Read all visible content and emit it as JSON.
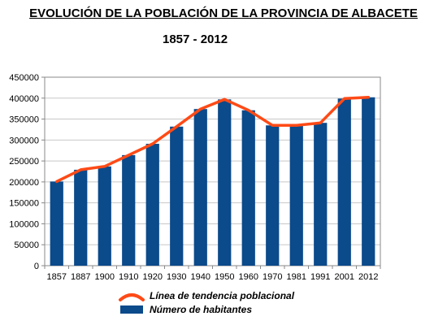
{
  "title": "EVOLUCIÓN DE LA POBLACIÓN DE LA PROVINCIA DE ALBACETE",
  "subtitle": "1857 - 2012",
  "colors": {
    "bar": "#0b4a8b",
    "trend": "#ff4a16",
    "grid": "#c8c8c8"
  },
  "chart_data": {
    "type": "bar",
    "categories": [
      "1857",
      "1887",
      "1900",
      "1910",
      "1920",
      "1930",
      "1940",
      "1950",
      "1960",
      "1970",
      "1981",
      "1991",
      "2001",
      "2012"
    ],
    "series": [
      {
        "name": "Número de habitantes",
        "type": "bar",
        "values": [
          201000,
          229000,
          237000,
          264000,
          291000,
          332000,
          374000,
          397000,
          371000,
          335000,
          335000,
          341000,
          399000,
          402000
        ]
      },
      {
        "name": "Línea de tendencia poblacional",
        "type": "line",
        "values": [
          201000,
          229000,
          237000,
          264000,
          291000,
          332000,
          374000,
          397000,
          371000,
          335000,
          335000,
          341000,
          399000,
          402000
        ]
      }
    ],
    "y_ticks": [
      "0",
      "50000",
      "100000",
      "150000",
      "200000",
      "250000",
      "300000",
      "350000",
      "400000",
      "450000"
    ],
    "ylim": [
      0,
      450000
    ],
    "grid": true,
    "legend_position": "bottom"
  }
}
